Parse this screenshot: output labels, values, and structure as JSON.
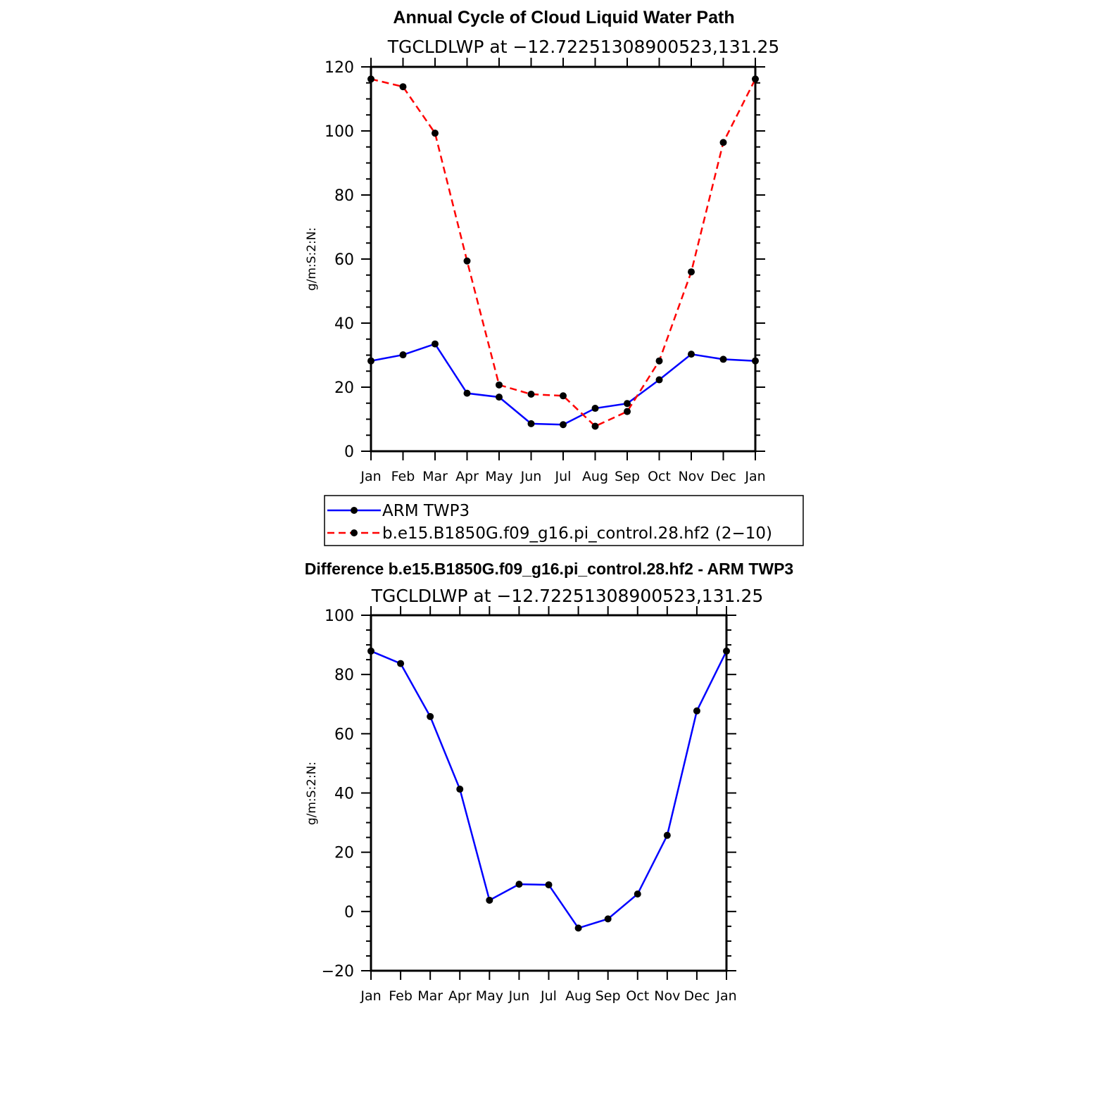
{
  "chart_data": [
    {
      "type": "line",
      "title": "Annual Cycle of Cloud Liquid Water Path",
      "subtitle": "TGCLDLWP  at  −12.72251308900523,131.25",
      "xlabel": "",
      "ylabel": "g/m:S:2:N:",
      "categories": [
        "Jan",
        "Feb",
        "Mar",
        "Apr",
        "May",
        "Jun",
        "Jul",
        "Aug",
        "Sep",
        "Oct",
        "Nov",
        "Dec",
        "Jan"
      ],
      "ylim": [
        0,
        120
      ],
      "yticks": [
        "0",
        "20",
        "40",
        "60",
        "80",
        "100",
        "120"
      ],
      "series": [
        {
          "name": "ARM  TWP3",
          "color": "#0000ff",
          "dash": "solid",
          "values": [
            28.2,
            30.1,
            33.5,
            18.1,
            16.9,
            8.6,
            8.3,
            13.4,
            14.9,
            22.3,
            30.3,
            28.7,
            28.2
          ]
        },
        {
          "name": "b.e15.B1850G.f09_g16.pi_control.28.hf2  (2−10)",
          "color": "#ff0000",
          "dash": "dashed",
          "values": [
            116.2,
            113.8,
            99.3,
            59.4,
            20.7,
            17.8,
            17.3,
            7.8,
            12.4,
            28.2,
            56.0,
            96.4,
            116.2
          ]
        }
      ],
      "legend": "bottom"
    },
    {
      "type": "line",
      "title": "Difference b.e15.B1850G.f09_g16.pi_control.28.hf2 - ARM TWP3",
      "subtitle": "TGCLDLWP  at  −12.72251308900523,131.25",
      "xlabel": "",
      "ylabel": "g/m:S:2:N:",
      "categories": [
        "Jan",
        "Feb",
        "Mar",
        "Apr",
        "May",
        "Jun",
        "Jul",
        "Aug",
        "Sep",
        "Oct",
        "Nov",
        "Dec",
        "Jan"
      ],
      "ylim": [
        -20,
        100
      ],
      "yticks": [
        "−20",
        "0",
        "20",
        "40",
        "60",
        "80",
        "100"
      ],
      "series": [
        {
          "color": "#0000ff",
          "dash": "solid",
          "values": [
            87.9,
            83.7,
            65.8,
            41.3,
            3.8,
            9.2,
            9.0,
            -5.6,
            -2.5,
            5.9,
            25.7,
            67.7,
            87.9
          ]
        }
      ]
    }
  ]
}
